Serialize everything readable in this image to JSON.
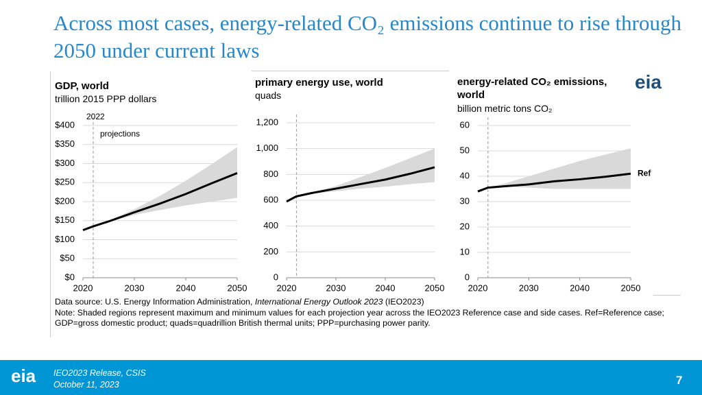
{
  "title": "Across most cases, energy-related CO₂ emissions continue to rise through 2050 under current laws",
  "chart_data": [
    {
      "type": "line",
      "title": "GDP, world",
      "subtitle": "trillion 2015 PPP dollars",
      "x": [
        2020,
        2022,
        2025,
        2030,
        2035,
        2040,
        2045,
        2050
      ],
      "series": [
        {
          "color": "#000000",
          "values": [
            125,
            135,
            148,
            172,
            195,
            220,
            248,
            275
          ]
        }
      ],
      "range_high": [
        125,
        135,
        150,
        180,
        215,
        255,
        298,
        343
      ],
      "range_low": [
        125,
        135,
        147,
        165,
        178,
        190,
        200,
        210
      ],
      "range_color": "#d9d9d9",
      "projection_line": 2022,
      "projection_label": "projections",
      "xlim": [
        2020,
        2050
      ],
      "xticks": [
        2020,
        2030,
        2040,
        2050
      ],
      "ylim": [
        0,
        400
      ],
      "yticks": [
        {
          "value": 0,
          "label": "$0"
        },
        {
          "value": 50,
          "label": "$50"
        },
        {
          "value": 100,
          "label": "$100"
        },
        {
          "value": 150,
          "label": "$150"
        },
        {
          "value": 200,
          "label": "$200"
        },
        {
          "value": 250,
          "label": "$250"
        },
        {
          "value": 300,
          "label": "$300"
        },
        {
          "value": 350,
          "label": "$350"
        },
        {
          "value": 400,
          "label": "$400"
        }
      ],
      "grid": true
    },
    {
      "type": "line",
      "title": "primary energy use, world",
      "subtitle": "quads",
      "x": [
        2020,
        2022,
        2025,
        2030,
        2035,
        2040,
        2045,
        2050
      ],
      "series": [
        {
          "color": "#000000",
          "values": [
            590,
            630,
            655,
            690,
            725,
            760,
            805,
            855
          ]
        }
      ],
      "range_high": [
        590,
        630,
        660,
        710,
        780,
        850,
        925,
        1000
      ],
      "range_low": [
        590,
        630,
        650,
        670,
        690,
        705,
        725,
        740
      ],
      "range_color": "#d9d9d9",
      "projection_line": 2022,
      "xlim": [
        2020,
        2050
      ],
      "xticks": [
        2020,
        2030,
        2040,
        2050
      ],
      "ylim": [
        0,
        1200
      ],
      "yticks": [
        0,
        200,
        400,
        600,
        800,
        {
          "value": 1000,
          "label": "1,000"
        },
        {
          "value": 1200,
          "label": "1,200"
        }
      ],
      "grid": true
    },
    {
      "type": "line",
      "title": "energy-related CO₂ emissions, world",
      "subtitle": "billion metric tons CO₂",
      "x": [
        2020,
        2022,
        2025,
        2030,
        2035,
        2040,
        2045,
        2050
      ],
      "series": [
        {
          "name": "Ref",
          "color": "#000000",
          "values": [
            34,
            35.5,
            36,
            36.8,
            38,
            38.8,
            39.8,
            41
          ]
        }
      ],
      "range_high": [
        34,
        35.5,
        37,
        40,
        43,
        46,
        48.5,
        51
      ],
      "range_low": [
        34,
        35.5,
        36,
        35.5,
        35,
        35,
        35,
        35
      ],
      "range_color": "#d9d9d9",
      "projection_line": 2022,
      "xlim": [
        2020,
        2050
      ],
      "xticks": [
        2020,
        2030,
        2040,
        2050
      ],
      "ylim": [
        0,
        60
      ],
      "yticks": [
        0,
        10,
        20,
        30,
        40,
        50,
        60
      ],
      "grid": true
    }
  ],
  "source": [
    "Data source: U.S. Energy Information Administration, ",
    "International Energy Outlook 2023",
    " (IEO2023)"
  ],
  "note": "Note: Shaded regions represent maximum and minimum values for each projection year across the IEO2023 Reference case and side cases. Ref=Reference case; GDP=gross domestic product; quads=quadrillion British thermal units; PPP=purchasing power parity.",
  "logo": "eia",
  "footer": {
    "event": "IEO2023 Release, CSIS",
    "date": "October 11, 2023",
    "page_number": 7
  }
}
